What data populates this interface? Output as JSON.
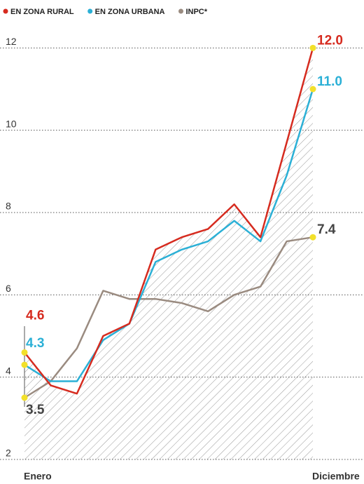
{
  "chart_data": {
    "type": "line",
    "categories": [
      "Enero",
      null,
      null,
      null,
      null,
      null,
      null,
      null,
      null,
      null,
      null,
      "Diciembre"
    ],
    "series": [
      {
        "name": "EN ZONA RURAL",
        "color": "#d62b1f",
        "values": [
          4.6,
          3.8,
          3.6,
          5.0,
          5.3,
          7.1,
          7.4,
          7.6,
          8.2,
          7.4,
          9.7,
          12.0
        ],
        "value_labels": [
          "4.6",
          null,
          null,
          null,
          null,
          null,
          null,
          null,
          null,
          null,
          null,
          "12.0"
        ]
      },
      {
        "name": "EN ZONA URBANA",
        "color": "#2bb0d6",
        "values": [
          4.3,
          3.9,
          3.9,
          4.9,
          5.3,
          6.8,
          7.1,
          7.3,
          7.8,
          7.3,
          8.9,
          11.0
        ],
        "value_labels": [
          "4.3",
          null,
          null,
          null,
          null,
          null,
          null,
          null,
          null,
          null,
          null,
          "11.0"
        ]
      },
      {
        "name": "INPC*",
        "color": "#9a8b80",
        "values": [
          3.5,
          3.9,
          4.7,
          6.1,
          5.9,
          5.9,
          5.8,
          5.6,
          6.0,
          6.2,
          7.3,
          7.4
        ],
        "value_labels": [
          "3.5",
          null,
          null,
          null,
          null,
          null,
          null,
          null,
          null,
          null,
          null,
          "7.4"
        ]
      }
    ],
    "ylim": [
      2,
      12.5
    ],
    "yticks": [
      2,
      4,
      6,
      8,
      10,
      12
    ],
    "grid": true
  }
}
